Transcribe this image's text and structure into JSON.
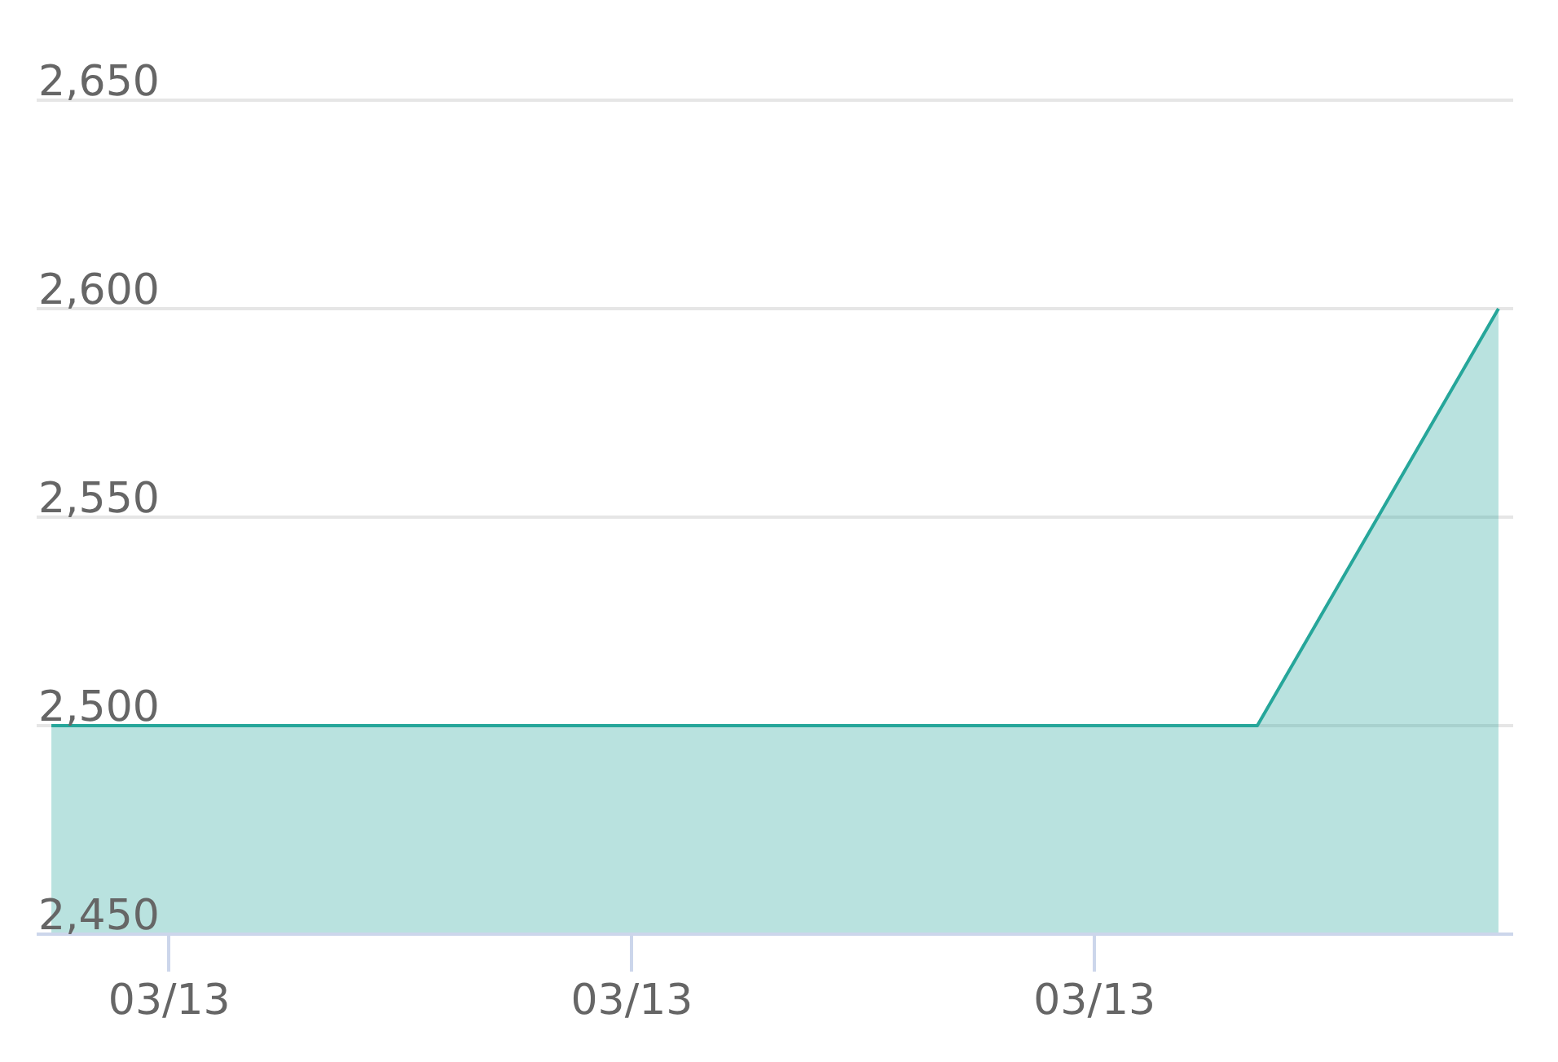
{
  "chart_data": {
    "type": "area",
    "categories": [
      null,
      null,
      null,
      null,
      null,
      null,
      null
    ],
    "values": [
      2500,
      2500,
      2500,
      2500,
      2500,
      2500,
      2600
    ],
    "color": "#26a69a",
    "ylim": [
      2450,
      2650
    ],
    "yticks": [
      {
        "value": 2450,
        "label": "2,450"
      },
      {
        "value": 2500,
        "label": "2,500"
      },
      {
        "value": 2550,
        "label": "2,550"
      },
      {
        "value": 2600,
        "label": "2,600"
      },
      {
        "value": 2650,
        "label": "2,650"
      }
    ],
    "grid": "y",
    "annotations": [
      "03/13",
      "03/13",
      "03/13"
    ]
  }
}
